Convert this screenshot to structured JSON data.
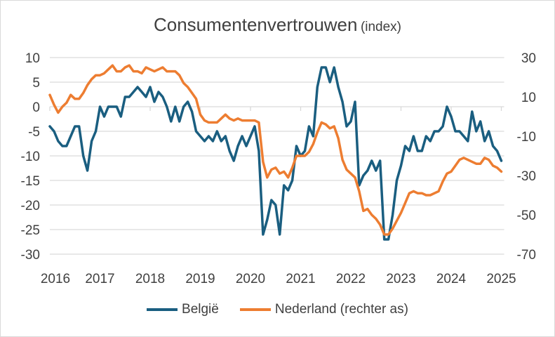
{
  "chart_data": {
    "type": "line",
    "title": "Consumentenvertrouwen",
    "subtitle": "(index)",
    "x_start": 2016,
    "x_ticks": [
      "2016",
      "2017",
      "2018",
      "2019",
      "2020",
      "2021",
      "2022",
      "2023",
      "2024",
      "2025"
    ],
    "y_left": {
      "ticks": [
        "10",
        "5",
        "0",
        "-5",
        "-10",
        "-15",
        "-20",
        "-25",
        "-30"
      ],
      "range": [
        -30,
        10
      ]
    },
    "y_right": {
      "ticks": [
        "30",
        "10",
        "-10",
        "-30",
        "-50",
        "-70"
      ],
      "range": [
        -70,
        30
      ]
    },
    "grid": true,
    "legend_position": "bottom",
    "frequency": "monthly, Jan 2016 - Jan 2025",
    "series": [
      {
        "name": "België",
        "axis": "left",
        "color": "#1a5e80",
        "values": [
          -4,
          -5,
          -7,
          -8,
          -8,
          -6,
          -4,
          -4,
          -10,
          -13,
          -7,
          -5,
          0,
          -2,
          0,
          0,
          0,
          -2,
          2,
          2,
          3,
          4,
          3,
          2,
          4,
          1,
          3,
          2,
          0,
          -3,
          0,
          -3,
          0,
          1,
          -1,
          -5,
          -6,
          -7,
          -6,
          -7,
          -5,
          -7,
          -6,
          -9,
          -11,
          -8,
          -6,
          -8,
          -6,
          -4,
          -9,
          -26,
          -23,
          -19,
          -20,
          -26,
          -16,
          -17,
          -15,
          -8,
          -10,
          -9,
          -4,
          -6,
          4,
          8,
          8,
          5,
          8,
          4,
          1,
          -4,
          -3,
          1,
          -16,
          -14,
          -13,
          -11,
          -13,
          -11,
          -27,
          -27,
          -22,
          -15,
          -12,
          -8,
          -9,
          -6,
          -9,
          -9,
          -6,
          -7,
          -5,
          -5,
          -4,
          0,
          -2,
          -5,
          -5,
          -6,
          -7,
          -1,
          -5,
          -3,
          -7,
          -5,
          -8,
          -9,
          -11
        ]
      },
      {
        "name": "Nederland (rechter as)",
        "axis": "right",
        "color": "#ed7d31",
        "values": [
          11,
          6,
          2,
          5,
          7,
          11,
          9,
          9,
          12,
          16,
          19,
          21,
          21,
          22,
          24,
          26,
          23,
          23,
          25,
          26,
          23,
          23,
          22,
          25,
          24,
          23,
          24,
          25,
          23,
          23,
          23,
          21,
          17,
          15,
          12,
          9,
          1,
          -2,
          -3,
          -3,
          -3,
          -1,
          1,
          -1,
          -2,
          -1,
          -2,
          -2,
          -2,
          -2,
          -3,
          -23,
          -31,
          -27,
          -26,
          -29,
          -28,
          -31,
          -26,
          -20,
          -20,
          -20,
          -18,
          -14,
          -8,
          -3,
          -4,
          -6,
          -5,
          -11,
          -22,
          -27,
          -29,
          -31,
          -38,
          -48,
          -47,
          -50,
          -52,
          -55,
          -60,
          -60,
          -57,
          -53,
          -49,
          -44,
          -39,
          -38,
          -39,
          -39,
          -40,
          -40,
          -39,
          -38,
          -33,
          -29,
          -28,
          -25,
          -22,
          -21,
          -22,
          -23,
          -24,
          -24,
          -21,
          -22,
          -25,
          -26,
          -28
        ]
      }
    ]
  }
}
